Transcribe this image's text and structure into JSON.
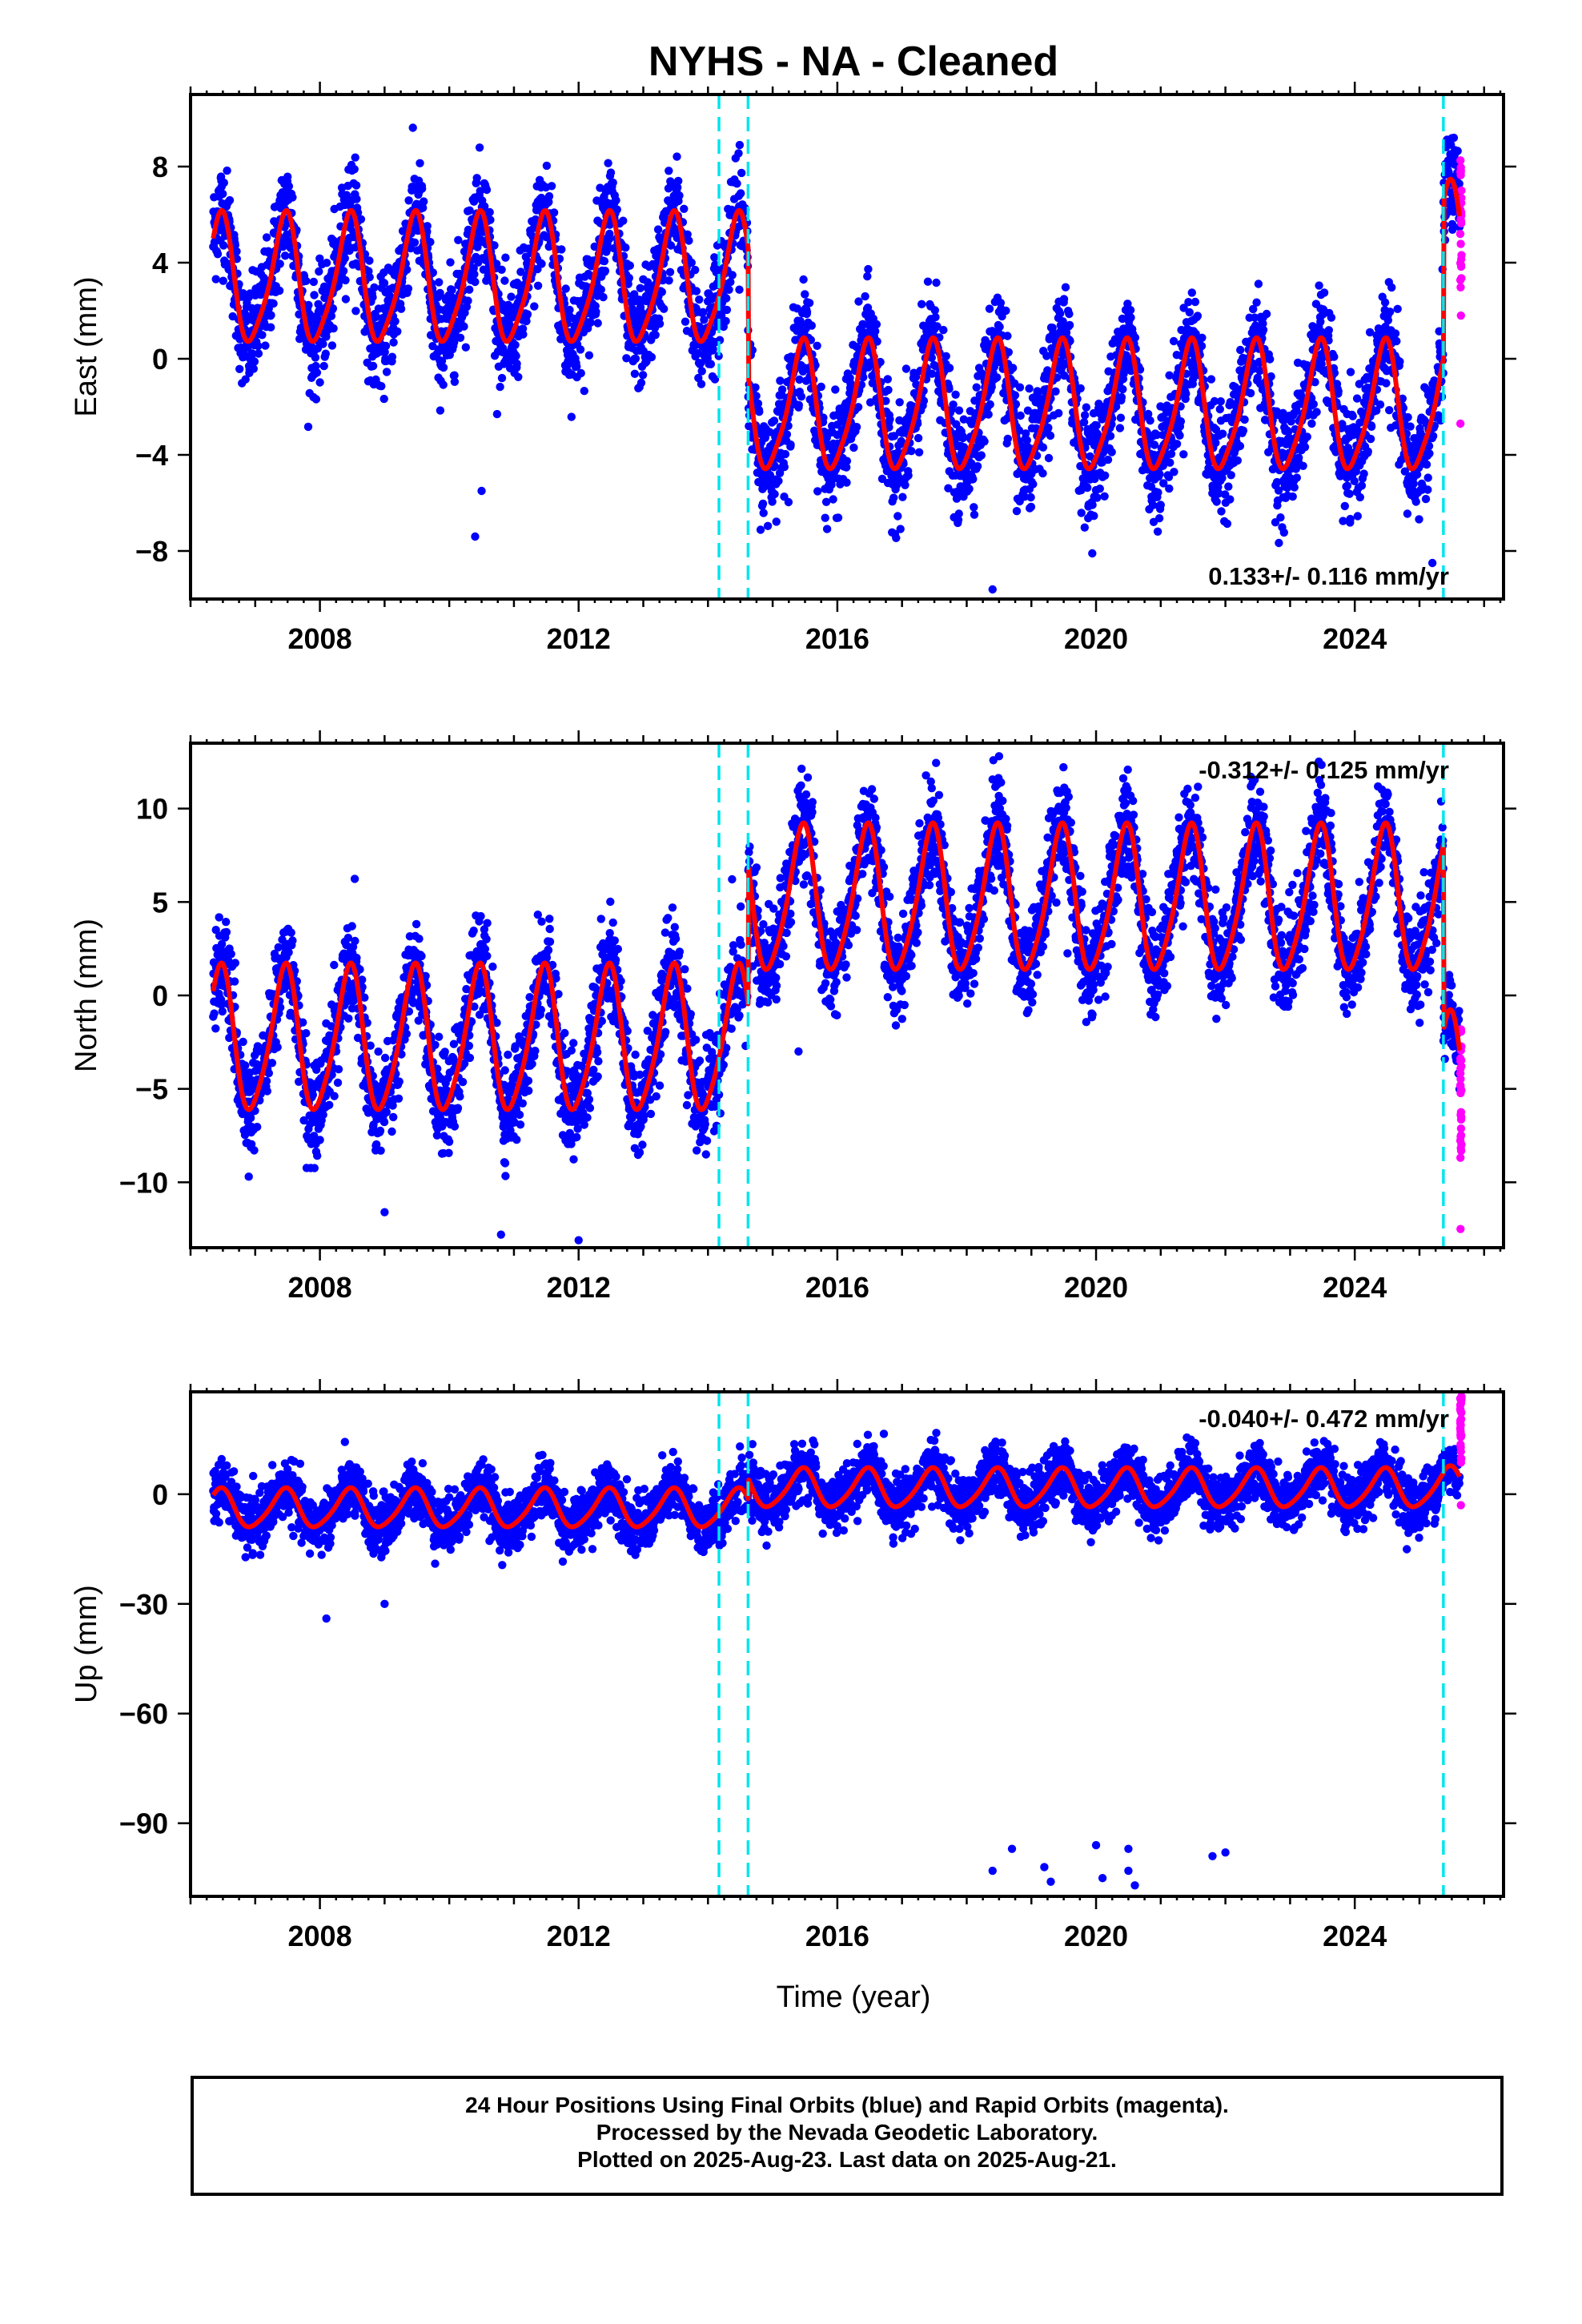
{
  "title": "NYHS  - NA - Cleaned",
  "xlabel": "Time (year)",
  "footer": {
    "line1": "24 Hour Positions Using Final Orbits (blue) and Rapid Orbits (magenta).",
    "line2": "Processed by the Nevada Geodetic Laboratory.",
    "line3": "Plotted on 2025-Aug-23. Last data on 2025-Aug-21."
  },
  "colors": {
    "final": "#0000ff",
    "rapid": "#ff00ff",
    "model": "#ff0000",
    "steps": "#00e5ee"
  },
  "chart_data": [
    {
      "type": "scatter",
      "panel": "east",
      "ylabel": "East (mm)",
      "rate": "0.133+/- 0.116 mm/yr",
      "rate_position": "bottom-right",
      "xlim": [
        2006.0,
        2026.3
      ],
      "ylim": [
        -10,
        11
      ],
      "xticks": [
        "2008",
        "2012",
        "2016",
        "2020",
        "2024"
      ],
      "yticks": [
        "8",
        "4",
        "0",
        "−4",
        "−8"
      ],
      "ytick_values": [
        8,
        4,
        0,
        -4,
        -8
      ],
      "step_epochs": [
        2014.17,
        2014.62,
        2025.37
      ],
      "model": {
        "start": 2006.35,
        "end": 2025.62,
        "pre_offset": 3.2,
        "post_offset": -2.1,
        "late_offset": 4.5,
        "annual_amp": 2.6,
        "semi_amp": 0.5,
        "noise": 1.1
      },
      "rapid_range": [
        -2.7,
        8.9
      ],
      "outliers": [
        [
          2010.4,
          -7.4
        ],
        [
          2010.5,
          -5.5
        ],
        [
          2018.4,
          -9.6
        ],
        [
          2025.2,
          -8.5
        ]
      ]
    },
    {
      "type": "scatter",
      "panel": "north",
      "ylabel": "North (mm)",
      "rate": "-0.312+/- 0.125 mm/yr",
      "rate_position": "top-right",
      "xlim": [
        2006.0,
        2026.3
      ],
      "ylim": [
        -13.5,
        13.5
      ],
      "xticks": [
        "2008",
        "2012",
        "2016",
        "2020",
        "2024"
      ],
      "yticks": [
        "10",
        "5",
        "0",
        "−5",
        "−10"
      ],
      "ytick_values": [
        10,
        5,
        0,
        -5,
        -10
      ],
      "step_epochs": [
        2014.17,
        2014.62,
        2025.37
      ],
      "model": {
        "start": 2006.35,
        "end": 2025.62,
        "pre_offset": -2.5,
        "post_offset": 5.0,
        "late_offset": -5.0,
        "annual_amp": 3.8,
        "semi_amp": 0.6,
        "noise": 1.3
      },
      "rapid_range": [
        -12.5,
        -1.8
      ],
      "outliers": [
        [
          2006.9,
          -9.7
        ],
        [
          2009.0,
          -11.6
        ],
        [
          2010.8,
          -12.8
        ],
        [
          2012.0,
          -13.1
        ],
        [
          2018.5,
          12.8
        ],
        [
          2015.4,
          -3.0
        ]
      ]
    },
    {
      "type": "scatter",
      "panel": "up",
      "ylabel": "Up (mm)",
      "rate": "-0.040+/- 0.472 mm/yr",
      "rate_position": "top-right",
      "xlim": [
        2006.0,
        2026.3
      ],
      "ylim": [
        -110,
        28
      ],
      "xticks": [
        "2008",
        "2012",
        "2016",
        "2020",
        "2024"
      ],
      "yticks": [
        "0",
        "−30",
        "−60",
        "−90"
      ],
      "ytick_values": [
        0,
        -30,
        -60,
        -90
      ],
      "step_epochs": [
        2014.17,
        2014.62,
        2025.37
      ],
      "model": {
        "start": 2006.35,
        "end": 2025.62,
        "pre_offset": -4.0,
        "post_offset": 1.5,
        "late_offset": 2.0,
        "annual_amp": 5.2,
        "semi_amp": 0.8,
        "noise": 3.8
      },
      "rapid_range": [
        -3,
        27
      ],
      "outliers": [
        [
          2008.1,
          -34
        ],
        [
          2009.0,
          -30
        ],
        [
          2018.4,
          -103
        ],
        [
          2018.7,
          -97
        ],
        [
          2019.2,
          -102
        ],
        [
          2019.3,
          -106
        ],
        [
          2020.0,
          -96
        ],
        [
          2020.1,
          -105
        ],
        [
          2020.5,
          -97
        ],
        [
          2020.5,
          -103
        ],
        [
          2020.6,
          -107
        ],
        [
          2021.8,
          -99
        ],
        [
          2022.0,
          -98
        ]
      ]
    }
  ]
}
